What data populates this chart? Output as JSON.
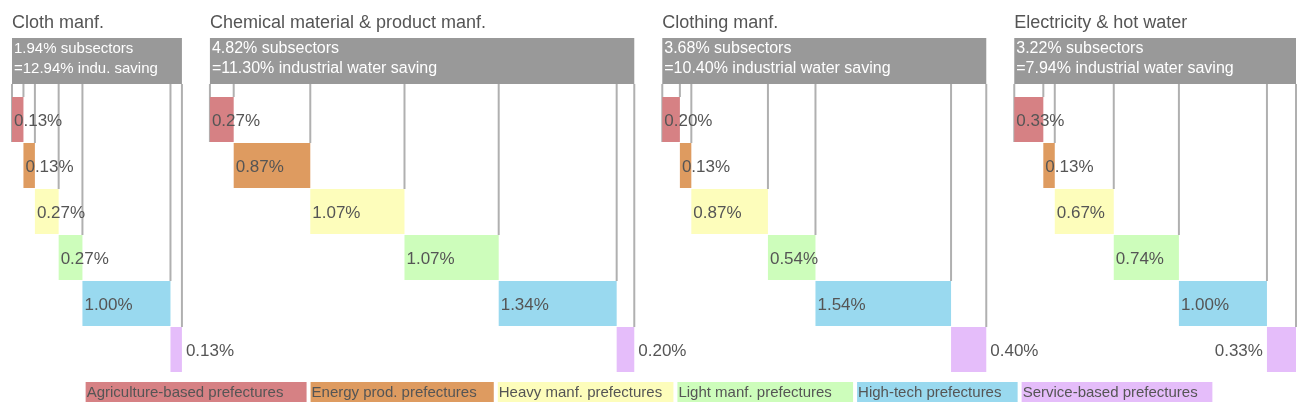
{
  "chart_data": [
    {
      "type": "other",
      "title": "Cloth manf.",
      "annotations": [
        "1.94% subsectors",
        "=12.94% indu. saving"
      ],
      "categories": [
        null,
        null,
        null,
        null,
        null,
        null
      ],
      "values": [
        0.13,
        0.13,
        0.27,
        0.27,
        1.0,
        0.13
      ],
      "value_labels": [
        "0.13%",
        "0.13%",
        "0.27%",
        "0.27%",
        "1.00%",
        "0.13%"
      ],
      "colors": [
        "#d68184",
        "#de9b60",
        "#fdfdbb",
        "#cdfdbb",
        "#99d9ef",
        "#e5bdfa"
      ]
    },
    {
      "type": "other",
      "title": "Chemical material & product manf.",
      "annotations": [
        "4.82% subsectors",
        "=11.30% industrial water saving"
      ],
      "categories": [
        null,
        null,
        null,
        null,
        null,
        null
      ],
      "values": [
        0.27,
        0.87,
        1.07,
        1.07,
        1.34,
        0.2
      ],
      "value_labels": [
        "0.27%",
        "0.87%",
        "1.07%",
        "1.07%",
        "1.34%",
        "0.20%"
      ],
      "colors": [
        "#d68184",
        "#de9b60",
        "#fdfdbb",
        "#cdfdbb",
        "#99d9ef",
        "#e5bdfa"
      ]
    },
    {
      "type": "other",
      "title": "Clothing manf.",
      "annotations": [
        "3.68% subsectors",
        "=10.40% industrial water saving"
      ],
      "categories": [
        null,
        null,
        null,
        null,
        null,
        null
      ],
      "values": [
        0.2,
        0.13,
        0.87,
        0.54,
        1.54,
        0.4
      ],
      "value_labels": [
        "0.20%",
        "0.13%",
        "0.87%",
        "0.54%",
        "1.54%",
        "0.40%"
      ],
      "colors": [
        "#d68184",
        "#de9b60",
        "#fdfdbb",
        "#cdfdbb",
        "#99d9ef",
        "#e5bdfa"
      ]
    },
    {
      "type": "other",
      "title": "Electricity & hot water",
      "annotations": [
        "3.22% subsectors",
        "=7.94% industrial water saving"
      ],
      "categories": [
        null,
        null,
        null,
        null,
        null,
        null
      ],
      "values": [
        0.33,
        0.13,
        0.67,
        0.74,
        1.0,
        0.33
      ],
      "value_labels": [
        "0.33%",
        "0.13%",
        "0.67%",
        "0.74%",
        "1.00%",
        "0.33%"
      ],
      "colors": [
        "#d68184",
        "#de9b60",
        "#fdfdbb",
        "#cdfdbb",
        "#99d9ef",
        "#e5bdfa"
      ]
    },
    {
      "type": "other",
      "categories": [
        "Agriculture-based prefectures",
        "Energy prod. prefectures",
        "Heavy manf. prefectures",
        "Light manf. prefectures",
        "High-tech prefectures",
        "Service-based prefectures"
      ],
      "colors": [
        "#d68184",
        "#de9b60",
        "#fdfdbb",
        "#cdfdbb",
        "#99d9ef",
        "#e5bdfa"
      ]
    }
  ]
}
